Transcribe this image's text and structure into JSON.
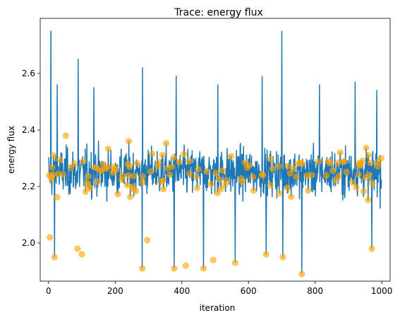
{
  "chart_data": {
    "type": "line",
    "title": "Trace: energy flux",
    "xlabel": "iteration",
    "ylabel": "energy flux",
    "xlim": [
      -25,
      1025
    ],
    "ylim": [
      1.865,
      2.795
    ],
    "x_ticks": [
      0,
      200,
      400,
      600,
      800,
      1000
    ],
    "x_tick_labels": [
      "0",
      "200",
      "400",
      "600",
      "800",
      "1000"
    ],
    "y_ticks": [
      2.0,
      2.2,
      2.4,
      2.6
    ],
    "y_tick_labels": [
      "2.0",
      "2.2",
      "2.4",
      "2.6"
    ],
    "grid": false,
    "legend": "none",
    "series": [
      {
        "kind": "line",
        "color": "#1f77b4",
        "x_start": 0,
        "x_step": 1,
        "point_count": 1000,
        "mean": 2.25,
        "typical_range": [
          1.95,
          2.6
        ],
        "notable_points": [
          {
            "x": 7,
            "y": 2.75
          },
          {
            "x": 26,
            "y": 2.56
          },
          {
            "x": 89,
            "y": 2.65
          },
          {
            "x": 136,
            "y": 2.55
          },
          {
            "x": 282,
            "y": 2.62
          },
          {
            "x": 383,
            "y": 2.59
          },
          {
            "x": 508,
            "y": 2.56
          },
          {
            "x": 641,
            "y": 2.59
          },
          {
            "x": 700,
            "y": 2.75
          },
          {
            "x": 813,
            "y": 2.56
          },
          {
            "x": 920,
            "y": 2.57
          },
          {
            "x": 985,
            "y": 2.54
          },
          {
            "x": 760,
            "y": 1.89
          },
          {
            "x": 281,
            "y": 1.91
          },
          {
            "x": 465,
            "y": 1.91
          },
          {
            "x": 377,
            "y": 1.91
          },
          {
            "x": 18,
            "y": 1.95
          },
          {
            "x": 653,
            "y": 1.96
          },
          {
            "x": 703,
            "y": 1.95
          },
          {
            "x": 560,
            "y": 1.93
          },
          {
            "x": 970,
            "y": 1.98
          }
        ]
      },
      {
        "kind": "scatter",
        "color": "#ffa500",
        "alpha": 0.6,
        "description_free": true,
        "point_count": 150,
        "notable_points": [
          {
            "x": 2,
            "y": 2.24
          },
          {
            "x": 4,
            "y": 2.02
          },
          {
            "x": 18,
            "y": 1.95
          },
          {
            "x": 52,
            "y": 2.38
          },
          {
            "x": 87,
            "y": 1.98
          },
          {
            "x": 100,
            "y": 1.96
          },
          {
            "x": 281,
            "y": 1.91
          },
          {
            "x": 296,
            "y": 2.01
          },
          {
            "x": 377,
            "y": 1.91
          },
          {
            "x": 412,
            "y": 1.92
          },
          {
            "x": 465,
            "y": 1.91
          },
          {
            "x": 494,
            "y": 1.94
          },
          {
            "x": 560,
            "y": 1.93
          },
          {
            "x": 653,
            "y": 1.96
          },
          {
            "x": 703,
            "y": 1.95
          },
          {
            "x": 760,
            "y": 1.89
          },
          {
            "x": 970,
            "y": 1.98
          },
          {
            "x": 998,
            "y": 2.3
          }
        ]
      }
    ]
  }
}
